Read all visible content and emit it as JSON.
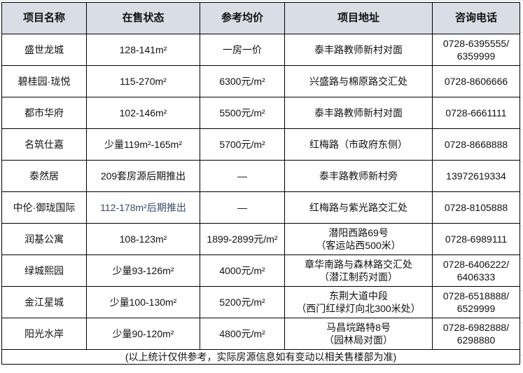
{
  "headers": [
    "项目名称",
    "在售状态",
    "参考均价",
    "项目地址",
    "咨询电话"
  ],
  "rows": [
    {
      "name": "盛世龙城",
      "status": "128-141m²",
      "price": "一房一价",
      "address": [
        "泰丰路教师新村对面"
      ],
      "phone": [
        "0728-6395555/",
        "6359999"
      ]
    },
    {
      "name": "碧桂园·珑悦",
      "status": "115-270m²",
      "price": "6300元/m²",
      "address": [
        "兴盛路与棉原路交汇处"
      ],
      "phone": [
        "0728-8606666"
      ]
    },
    {
      "name": "都市华府",
      "status": "102-146m²",
      "price": "5500元/m²",
      "address": [
        "泰丰路教师新村对面"
      ],
      "phone": [
        "0728-6661111"
      ]
    },
    {
      "name": "名筑仕嘉",
      "status": "少量119m²-165m²",
      "price": "5700元/m²",
      "address": [
        "红梅路（市政府东侧）"
      ],
      "phone": [
        "0728-8668888"
      ]
    },
    {
      "name": "泰然居",
      "status": "209套房源后期推出",
      "price": "—",
      "address": [
        "泰丰路教师新村旁"
      ],
      "phone": [
        "13972619334"
      ]
    },
    {
      "name": "中伦·御珑国际",
      "status": "112-178m²后期推出",
      "price": "—",
      "address": [
        "红梅路与紫光路交汇处"
      ],
      "phone": [
        "0728-8105888"
      ]
    },
    {
      "name": "润基公寓",
      "status": "108-123m²",
      "price": "1899-2899元/m²",
      "address": [
        "潜阳西路69号",
        "（客运站西500米）"
      ],
      "phone": [
        "0728-6989111"
      ]
    },
    {
      "name": "绿城熙园",
      "status": "少量93-126m²",
      "price": "4000元/m²",
      "address": [
        "章华南路与森林路交汇处",
        "（潜江制药对面）"
      ],
      "phone": [
        "0728-6406222/",
        "6406333"
      ]
    },
    {
      "name": "金江星城",
      "status": "少量100-130m²",
      "price": "5200元/m²",
      "address": [
        "东荆大道中段",
        "（西门红绿灯向北300米处）"
      ],
      "phone": [
        "0728-6518888/",
        "6529999"
      ]
    },
    {
      "name": "阳光水岸",
      "status": "少量90-120m²",
      "price": "4800元/m²",
      "address": [
        "马昌垸路特8号",
        "（园林局对面）"
      ],
      "phone": [
        "0728-6982888/",
        "6298880"
      ]
    }
  ],
  "footer": "(以上统计仅供参考，实际房源信息如有变动以相关售楼部为准)",
  "colors": {
    "header_bg": "#d9dde5",
    "border": "#000000"
  }
}
